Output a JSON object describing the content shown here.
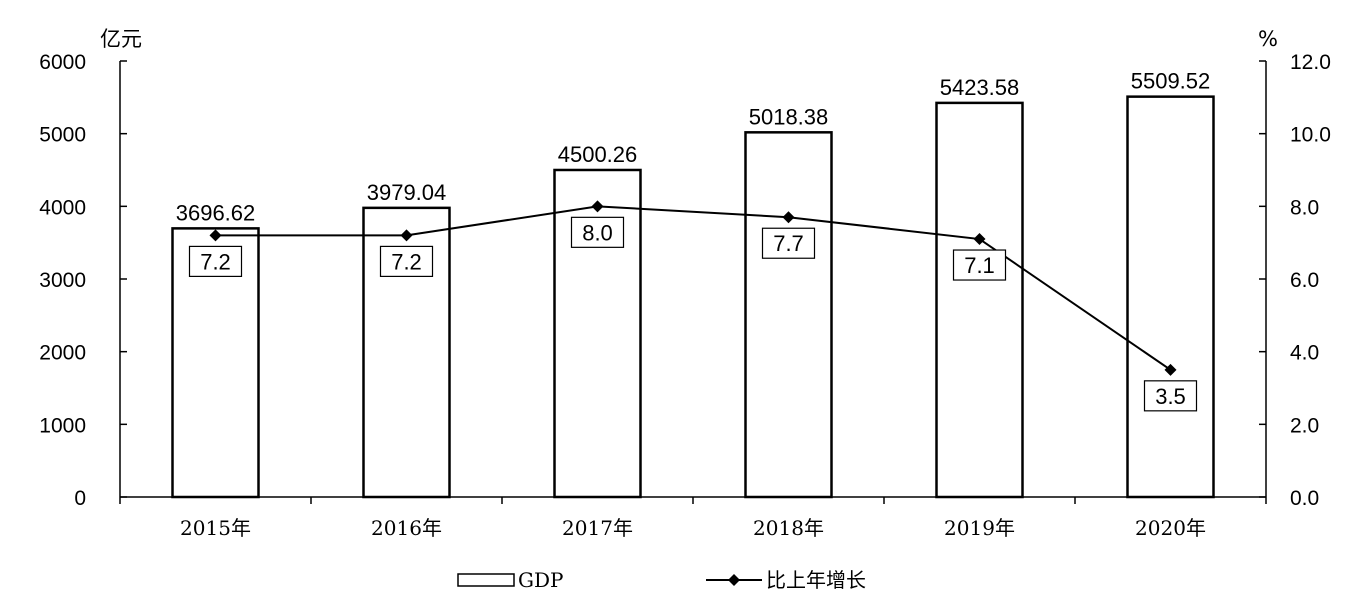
{
  "chart_data": {
    "type": "bar",
    "categories": [
      "2015年",
      "2016年",
      "2017年",
      "2018年",
      "2019年",
      "2020年"
    ],
    "series": [
      {
        "name": "GDP",
        "type": "bar",
        "axis": "left",
        "values": [
          3696.62,
          3979.04,
          4500.26,
          5018.38,
          5423.58,
          5509.52
        ],
        "labels": [
          "3696.62",
          "3979.04",
          "4500.26",
          "5018.38",
          "5423.58",
          "5509.52"
        ]
      },
      {
        "name": "比上年增长",
        "type": "line",
        "axis": "right",
        "values": [
          7.2,
          7.2,
          8.0,
          7.7,
          7.1,
          3.5
        ],
        "labels": [
          "7.2",
          "7.2",
          "8.0",
          "7.7",
          "7.1",
          "3.5"
        ]
      }
    ],
    "y_left": {
      "unit": "亿元",
      "range": [
        0,
        6000
      ],
      "ticks": [
        "0",
        "1000",
        "2000",
        "3000",
        "4000",
        "5000",
        "6000"
      ]
    },
    "y_right": {
      "unit": "%",
      "range": [
        0,
        12
      ],
      "ticks": [
        "0.0",
        "2.0",
        "4.0",
        "6.0",
        "8.0",
        "10.0",
        "12.0"
      ]
    },
    "legend_position": "bottom",
    "grid": false,
    "colors": {
      "bar_fill": "#ffffff",
      "bar_stroke": "#000000",
      "line": "#000000",
      "marker": "#000000"
    }
  }
}
